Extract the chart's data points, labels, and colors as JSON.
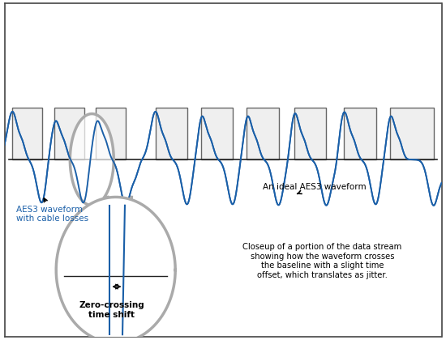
{
  "bg_color": "#ffffff",
  "border_color": "#444444",
  "wave_color": "#1a5fa8",
  "rect_edge_color": "#666666",
  "rect_fill_color": "#efefef",
  "baseline_color": "#222222",
  "arrow_color": "#000000",
  "circle_color": "#aaaaaa",
  "text_color_blue": "#1a5fa8",
  "text_color_black": "#000000",
  "label_aes3": "AES3 waveform\nwith cable losses",
  "label_ideal": "An ideal AES3 waveform",
  "label_zero": "Zero-crossing\ntime shift",
  "label_closeup": "Closeup of a portion of the data stream\nshowing how the waveform crosses\nthe baseline with a slight time\noffset, which translates as jitter.",
  "figsize": [
    5.5,
    4.2
  ],
  "dpi": 100
}
